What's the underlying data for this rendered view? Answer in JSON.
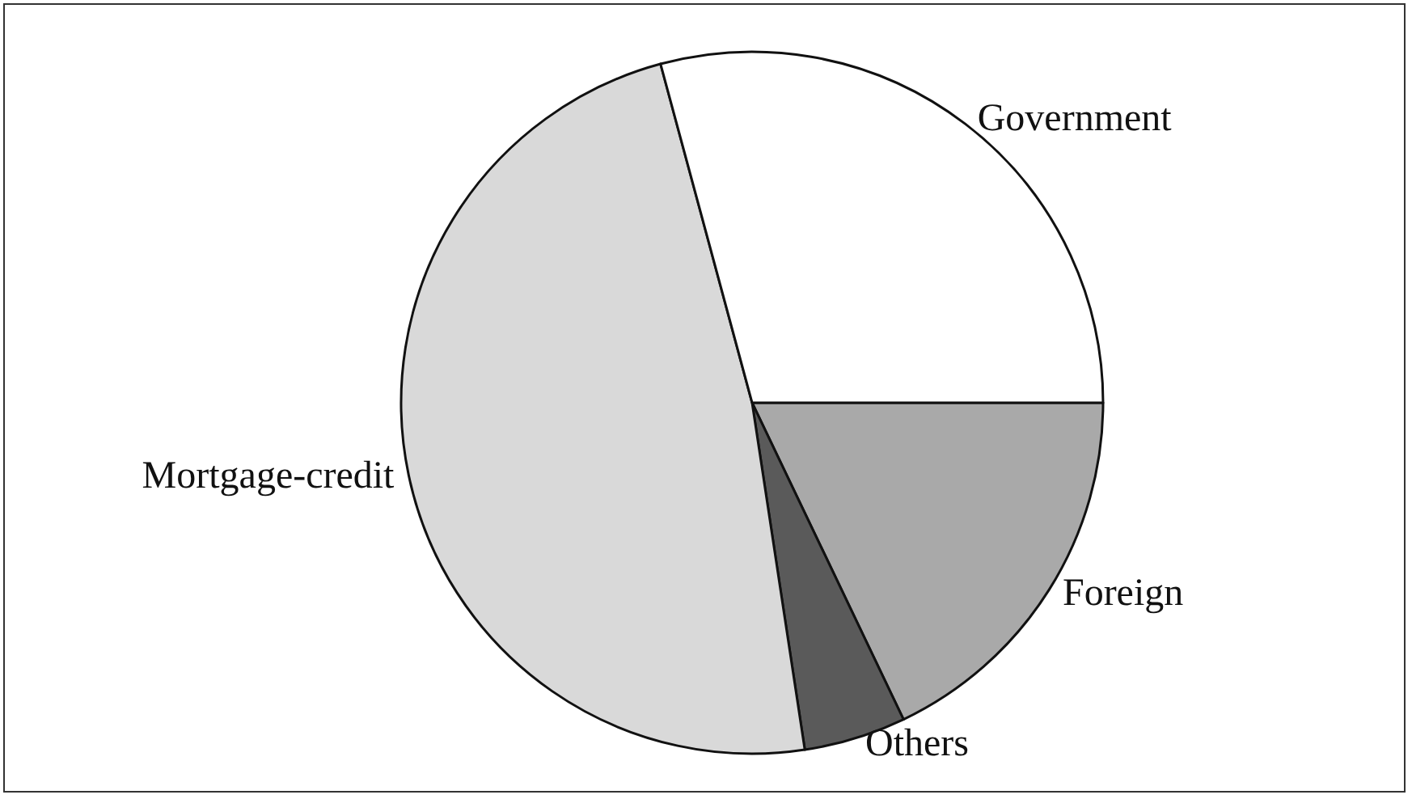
{
  "chart_data": {
    "type": "pie",
    "categories": [
      "Foreign",
      "Others",
      "Mortgage-credit",
      "Government"
    ],
    "values": [
      17.9,
      4.7,
      48.2,
      29.2
    ],
    "colors": [
      "#a9a9a9",
      "#5a5a5a",
      "#d9d9d9",
      "#ffffff"
    ],
    "legend": false
  }
}
